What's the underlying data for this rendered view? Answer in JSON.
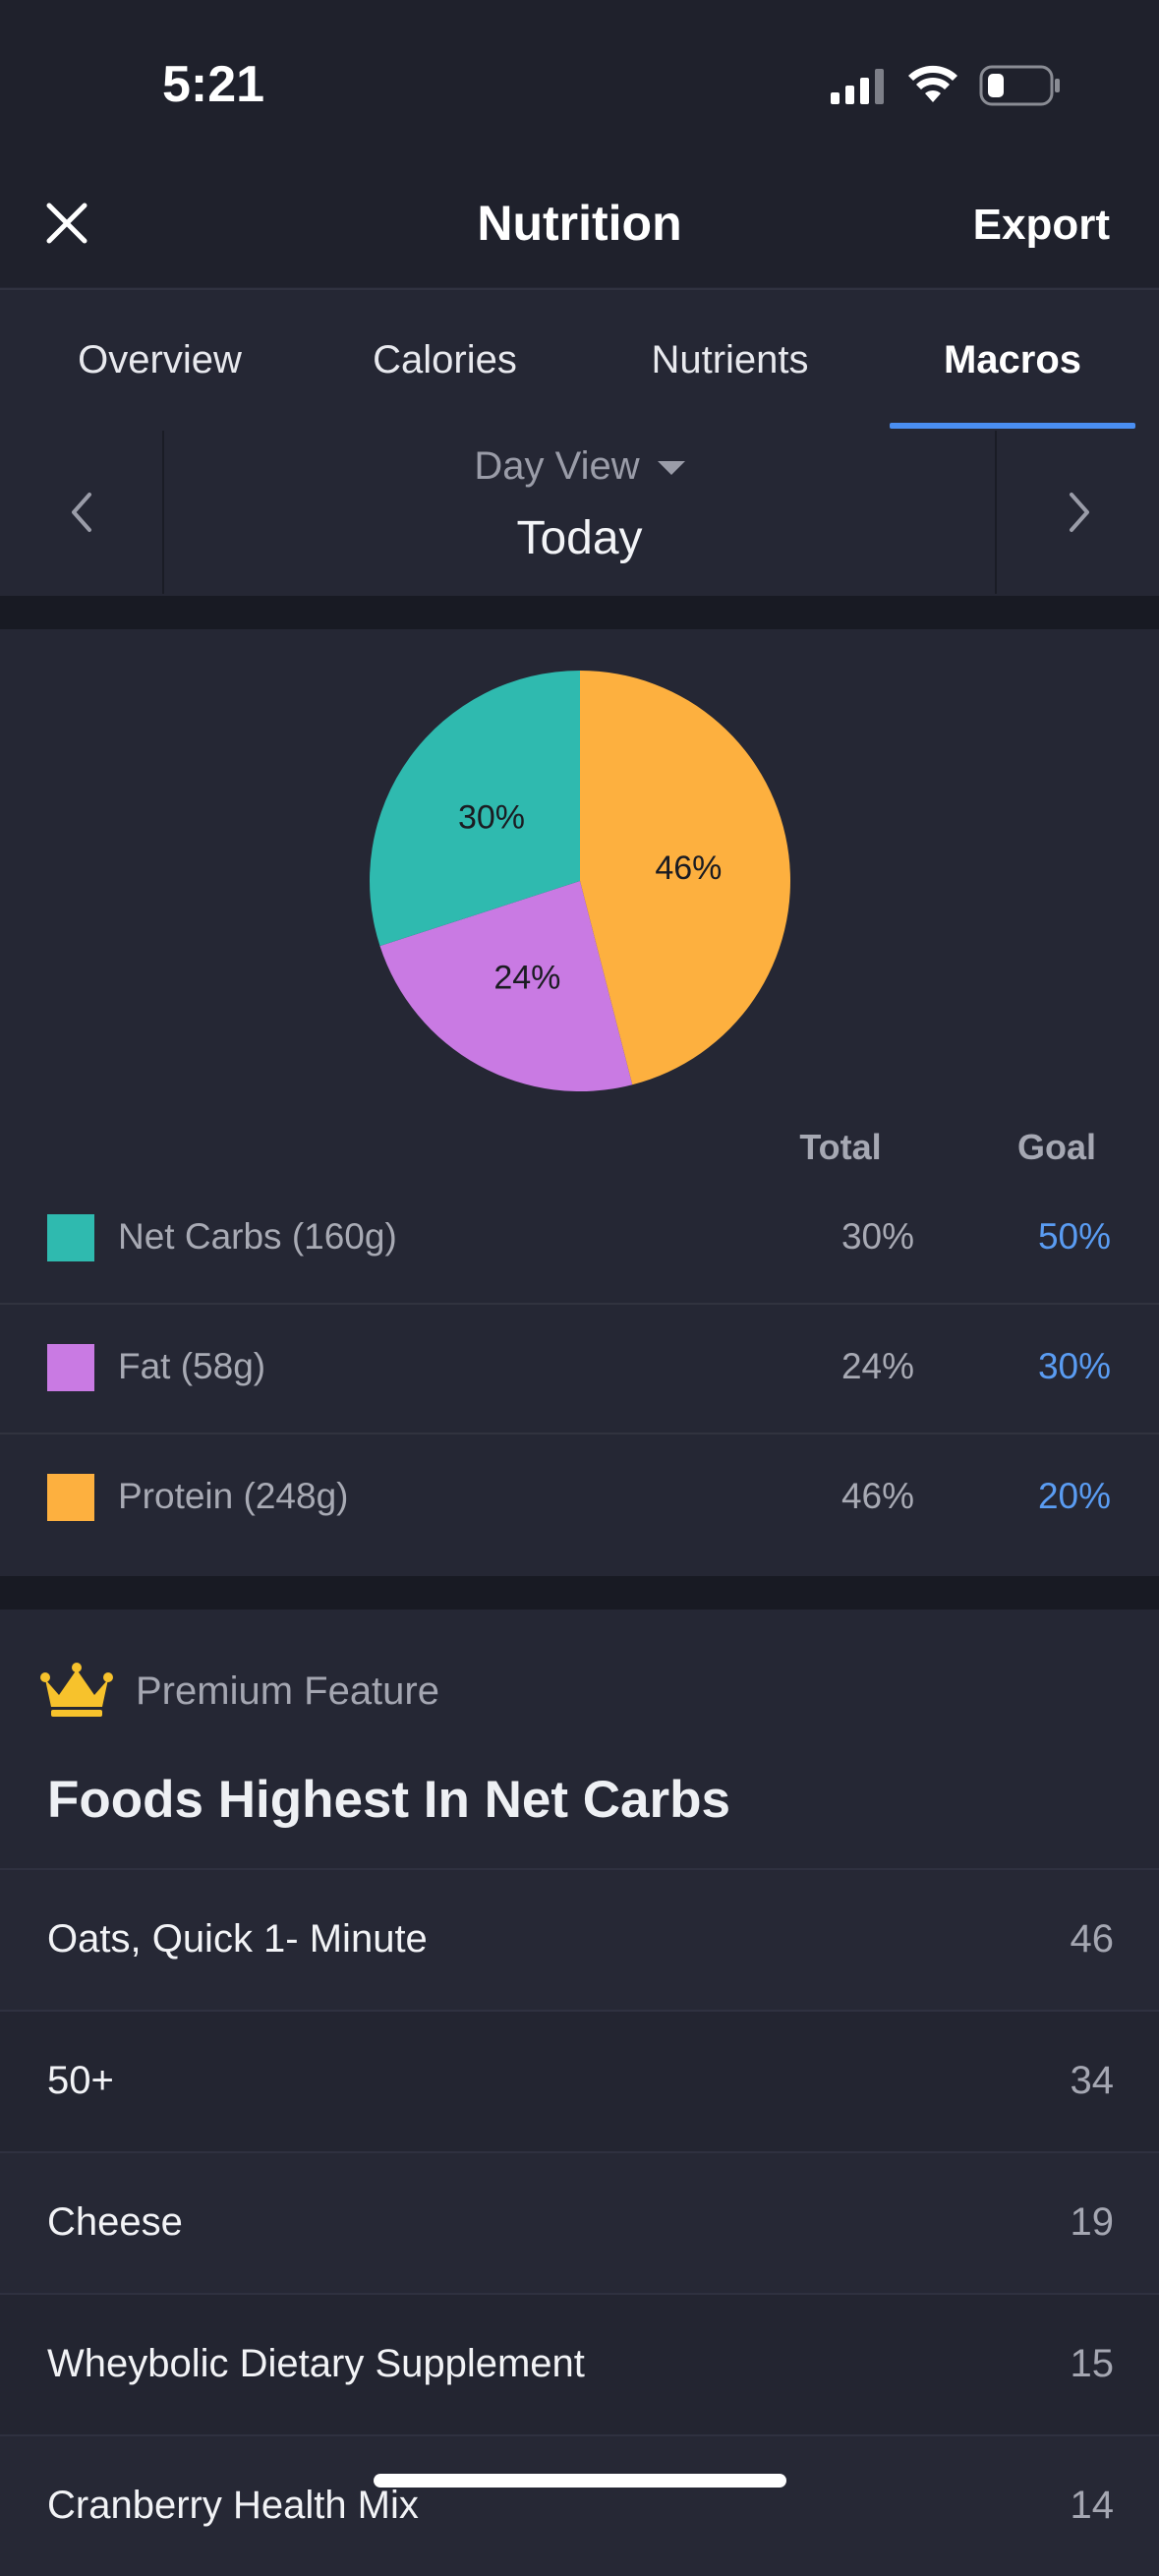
{
  "status_bar": {
    "time": "5:21"
  },
  "header": {
    "title": "Nutrition",
    "export_label": "Export"
  },
  "tabs": [
    {
      "label": "Overview",
      "active": false
    },
    {
      "label": "Calories",
      "active": false
    },
    {
      "label": "Nutrients",
      "active": false
    },
    {
      "label": "Macros",
      "active": true
    }
  ],
  "day_selector": {
    "view_label": "Day View",
    "day_label": "Today"
  },
  "colors": {
    "accent": "#4a8ef1",
    "net_carbs": "#2fbaaf",
    "fat": "#c97ae3",
    "protein": "#fdb03f",
    "goal_text": "#5a9cf2"
  },
  "chart_data": {
    "type": "pie",
    "slices": [
      {
        "label": "46%",
        "value": 46,
        "color": "#fdb03f"
      },
      {
        "label": "24%",
        "value": 24,
        "color": "#c97ae3"
      },
      {
        "label": "30%",
        "value": 30,
        "color": "#2fbaaf"
      }
    ]
  },
  "macros": {
    "col_total": "Total",
    "col_goal": "Goal",
    "rows": [
      {
        "label": "Net Carbs (160g)",
        "total": "30%",
        "goal": "50%",
        "color": "#2fbaaf"
      },
      {
        "label": "Fat (58g)",
        "total": "24%",
        "goal": "30%",
        "color": "#c97ae3"
      },
      {
        "label": "Protein (248g)",
        "total": "46%",
        "goal": "20%",
        "color": "#fdb03f"
      }
    ]
  },
  "premium": {
    "label": "Premium Feature",
    "title": "Foods Highest In Net Carbs",
    "foods": [
      {
        "name": "Oats, Quick 1- Minute",
        "value": "46"
      },
      {
        "name": "50+",
        "value": "34"
      },
      {
        "name": "Cheese",
        "value": "19"
      },
      {
        "name": "Wheybolic Dietary Supplement",
        "value": "15"
      },
      {
        "name": "Cranberry Health Mix",
        "value": "14"
      }
    ]
  }
}
